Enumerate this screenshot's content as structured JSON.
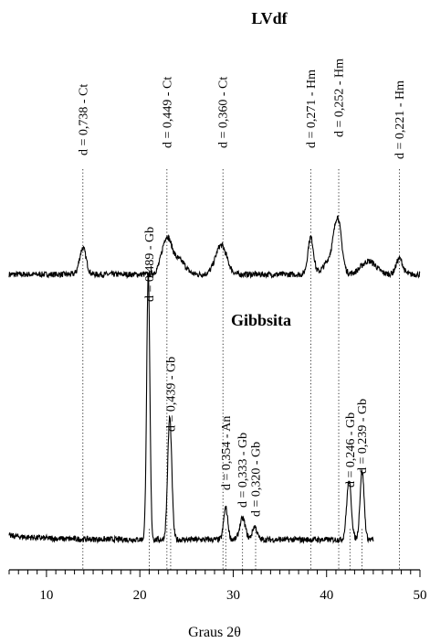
{
  "chart_data": {
    "type": "line",
    "xlabel": "Graus 2θ",
    "xlim": [
      6,
      50
    ],
    "x_ticks": [
      "10",
      "20",
      "30",
      "40",
      "50"
    ],
    "series": [
      {
        "name": "LVdf",
        "baseline": 1.0,
        "peaks": [
          {
            "x": 13.9,
            "h": 0.1,
            "w": 0.35
          },
          {
            "x": 22.9,
            "h": 0.14,
            "w": 0.55
          },
          {
            "x": 24.3,
            "h": 0.05,
            "w": 0.6
          },
          {
            "x": 28.7,
            "h": 0.11,
            "w": 0.6
          },
          {
            "x": 38.3,
            "h": 0.14,
            "w": 0.3
          },
          {
            "x": 41.2,
            "h": 0.18,
            "w": 0.4
          },
          {
            "x": 40.5,
            "h": 0.06,
            "w": 0.7
          },
          {
            "x": 44.5,
            "h": 0.05,
            "w": 0.8
          },
          {
            "x": 47.8,
            "h": 0.06,
            "w": 0.35
          }
        ]
      },
      {
        "name": "Gibbsita",
        "baseline": 0.0,
        "peaks": [
          {
            "x": 20.9,
            "h": 1.0,
            "w": 0.17
          },
          {
            "x": 23.2,
            "h": 0.46,
            "w": 0.22
          },
          {
            "x": 29.2,
            "h": 0.12,
            "w": 0.22
          },
          {
            "x": 31.0,
            "h": 0.08,
            "w": 0.3
          },
          {
            "x": 32.3,
            "h": 0.05,
            "w": 0.25
          },
          {
            "x": 42.4,
            "h": 0.22,
            "w": 0.25
          },
          {
            "x": 43.8,
            "h": 0.26,
            "w": 0.22
          }
        ]
      }
    ],
    "annotations": [
      {
        "x": 13.9,
        "text": "d = 0,738 - Ct",
        "group": "LVdf"
      },
      {
        "x": 22.9,
        "text": "d = 0,449 - Ct",
        "group": "LVdf"
      },
      {
        "x": 28.9,
        "text": "d = 0,360 - Ct",
        "group": "LVdf"
      },
      {
        "x": 38.3,
        "text": "d = 0,271 - Hm",
        "group": "LVdf"
      },
      {
        "x": 41.3,
        "text": "d = 0,252 - Hm",
        "group": "LVdf"
      },
      {
        "x": 47.8,
        "text": "d = 0,221 - Hm",
        "group": "LVdf"
      },
      {
        "x": 21.0,
        "text": "d = 0,489 - Gb",
        "group": "Gibbsita"
      },
      {
        "x": 23.3,
        "text": "d = 0,439 - Gb",
        "group": "Gibbsita"
      },
      {
        "x": 29.2,
        "text": "d = 0,354 - An",
        "group": "Gibbsita"
      },
      {
        "x": 31.0,
        "text": "d = 0,333 - Gb",
        "group": "Gibbsita"
      },
      {
        "x": 32.4,
        "text": "d = 0,320 - Gb",
        "group": "Gibbsita"
      },
      {
        "x": 42.5,
        "text": "d = 0,246 - Gb",
        "group": "Gibbsita"
      },
      {
        "x": 43.8,
        "text": "d = 0,239 - Gb",
        "group": "Gibbsita"
      }
    ],
    "grid": false,
    "legend": "none"
  }
}
